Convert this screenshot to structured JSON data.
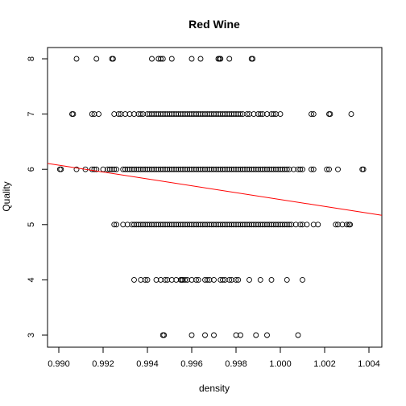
{
  "chart_data": {
    "type": "scatter",
    "title": "Red Wine",
    "xlabel": "density",
    "ylabel": "Quality",
    "xlim": [
      0.99,
      1.004
    ],
    "ylim": [
      3,
      8
    ],
    "x_ticks": [
      "0.990",
      "0.992",
      "0.994",
      "0.996",
      "0.998",
      "1.000",
      "1.002",
      "1.004"
    ],
    "y_ticks": [
      "3",
      "4",
      "5",
      "6",
      "7",
      "8"
    ],
    "grid": false,
    "legend": "none",
    "point_color": "#000000",
    "series": [
      {
        "quality": 8,
        "x": [
          0.9908,
          0.9917,
          0.9924,
          0.99245,
          0.9942,
          0.9945,
          0.9946,
          0.9947,
          0.9951,
          0.996,
          0.9964,
          0.9972,
          0.99725,
          0.9973,
          0.9977,
          0.9987,
          0.99875
        ]
      },
      {
        "quality": 7,
        "x": [
          0.9906,
          0.99065,
          0.9915,
          0.9916,
          0.9918,
          0.9925,
          0.9927,
          0.9928,
          0.993,
          0.9932,
          0.9934,
          0.9936,
          0.9937,
          0.9938,
          0.994,
          0.9941,
          0.9942,
          0.9943,
          0.9944,
          0.9945,
          0.9946,
          0.9947,
          0.9948,
          0.9949,
          0.995,
          0.9951,
          0.9952,
          0.9953,
          0.9954,
          0.9955,
          0.9956,
          0.9957,
          0.9958,
          0.9959,
          0.996,
          0.9961,
          0.9962,
          0.9963,
          0.9964,
          0.9965,
          0.9966,
          0.9967,
          0.9968,
          0.9969,
          0.997,
          0.9971,
          0.9972,
          0.9973,
          0.9974,
          0.9975,
          0.9976,
          0.9977,
          0.9978,
          0.9979,
          0.998,
          0.9981,
          0.9982,
          0.9983,
          0.9985,
          0.9986,
          0.9988,
          0.999,
          0.9991,
          0.9992,
          0.9994,
          0.9996,
          0.9997,
          0.9998,
          1.0,
          1.0014,
          1.0015,
          1.0022,
          1.00225,
          1.0032
        ]
      },
      {
        "quality": 6,
        "x": [
          0.99005,
          0.9901,
          0.9908,
          0.9912,
          0.9915,
          0.9916,
          0.9917,
          0.992,
          0.9922,
          0.9923,
          0.9924,
          0.9925,
          0.9926,
          0.9929,
          0.993,
          0.9931,
          0.9932,
          0.9933,
          0.9934,
          0.9935,
          0.9936,
          0.9937,
          0.9938,
          0.9939,
          0.994,
          0.9941,
          0.9942,
          0.9943,
          0.9944,
          0.9945,
          0.9946,
          0.9947,
          0.9948,
          0.9949,
          0.995,
          0.9951,
          0.9952,
          0.9953,
          0.9954,
          0.9955,
          0.9956,
          0.9957,
          0.9958,
          0.9959,
          0.996,
          0.9961,
          0.9962,
          0.9963,
          0.9964,
          0.9965,
          0.9966,
          0.9967,
          0.9968,
          0.9969,
          0.997,
          0.9971,
          0.9972,
          0.9973,
          0.9974,
          0.9975,
          0.9976,
          0.9977,
          0.9978,
          0.9979,
          0.998,
          0.9981,
          0.9982,
          0.9983,
          0.9984,
          0.9985,
          0.9986,
          0.9987,
          0.9988,
          0.9989,
          0.999,
          0.9991,
          0.9992,
          0.9993,
          0.9994,
          0.9995,
          0.9996,
          0.9997,
          0.9998,
          0.9999,
          1.0,
          1.0001,
          1.0002,
          1.0003,
          1.0004,
          1.0006,
          1.0008,
          1.0009,
          1.001,
          1.0014,
          1.0015,
          1.0021,
          1.0022,
          1.0026,
          1.0037,
          1.00375
        ]
      },
      {
        "quality": 5,
        "x": [
          0.9925,
          0.9926,
          0.9929,
          0.9931,
          0.9933,
          0.9934,
          0.9935,
          0.9936,
          0.9937,
          0.9938,
          0.9939,
          0.994,
          0.9941,
          0.9942,
          0.9943,
          0.9944,
          0.9945,
          0.9946,
          0.9947,
          0.9948,
          0.9949,
          0.995,
          0.9951,
          0.9952,
          0.9953,
          0.9954,
          0.9955,
          0.9956,
          0.9957,
          0.9958,
          0.9959,
          0.996,
          0.9961,
          0.9962,
          0.9963,
          0.9964,
          0.9965,
          0.9966,
          0.9967,
          0.9968,
          0.9969,
          0.997,
          0.9971,
          0.9972,
          0.9973,
          0.9974,
          0.9975,
          0.9976,
          0.9977,
          0.9978,
          0.9979,
          0.998,
          0.9981,
          0.9982,
          0.9983,
          0.9984,
          0.9985,
          0.9986,
          0.9987,
          0.9988,
          0.9989,
          0.999,
          0.9991,
          0.9992,
          0.9993,
          0.9994,
          0.9995,
          0.9996,
          0.9997,
          0.9998,
          0.9999,
          1.0,
          1.0001,
          1.0002,
          1.0003,
          1.0004,
          1.0005,
          1.0007,
          1.0009,
          1.001,
          1.0012,
          1.0015,
          1.0017,
          1.0025,
          1.0026,
          1.0028,
          1.003,
          1.0031,
          1.00315
        ]
      },
      {
        "quality": 4,
        "x": [
          0.9934,
          0.9937,
          0.9939,
          0.994,
          0.9944,
          0.9946,
          0.9948,
          0.9949,
          0.9951,
          0.9953,
          0.9955,
          0.99555,
          0.9956,
          0.9957,
          0.9958,
          0.996,
          0.9962,
          0.9963,
          0.9966,
          0.9967,
          0.9968,
          0.997,
          0.9973,
          0.9974,
          0.9975,
          0.9977,
          0.9978,
          0.998,
          0.9981,
          0.9986,
          0.9991,
          0.9996,
          1.0003,
          1.001
        ]
      },
      {
        "quality": 3,
        "x": [
          0.9947,
          0.99475,
          0.996,
          0.9966,
          0.997,
          0.998,
          0.9982,
          0.9989,
          0.9994,
          1.0008
        ]
      }
    ],
    "fit_line": {
      "color": "#ff0000",
      "x": [
        0.99,
        1.004
      ],
      "y": [
        6.075,
        5.205
      ]
    }
  }
}
